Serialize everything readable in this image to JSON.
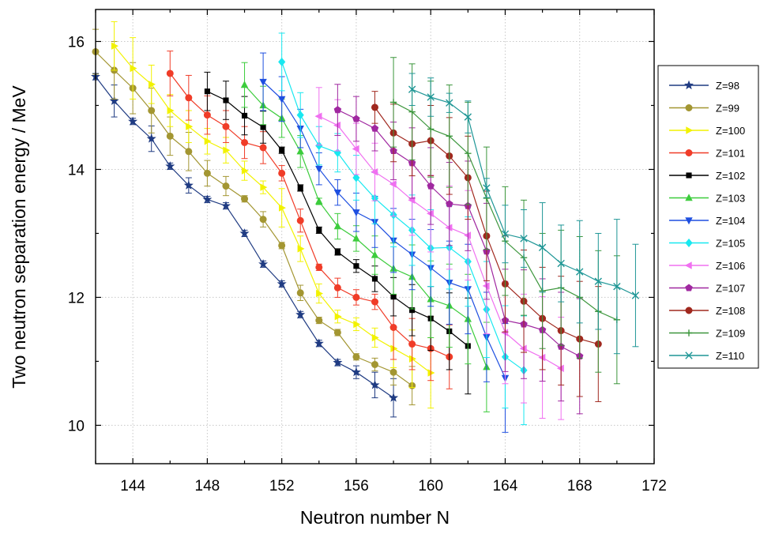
{
  "chart_data": {
    "type": "line",
    "title": "",
    "xlabel": "Neutron number N",
    "ylabel": "Two neutron separation energy / MeV",
    "xlim": [
      142,
      172
    ],
    "ylim": [
      9.4,
      16.5
    ],
    "xticks": [
      144,
      148,
      152,
      156,
      160,
      164,
      168,
      172
    ],
    "xtick_labels": [
      "144",
      "148",
      "152",
      "156",
      "160",
      "164",
      "168",
      "172"
    ],
    "yticks": [
      10,
      12,
      14,
      16
    ],
    "ytick_labels": [
      "10",
      "12",
      "14",
      "16"
    ],
    "grid": true,
    "legend_position": "right",
    "error_bars": true,
    "series": [
      {
        "name": "Z=98",
        "color": "#1f3b82",
        "marker": "star",
        "x": [
          142,
          143,
          144,
          145,
          146,
          147,
          148,
          149,
          150,
          151,
          152,
          153,
          154,
          155,
          156,
          157,
          158
        ],
        "y": [
          15.45,
          15.07,
          14.75,
          14.48,
          14.05,
          13.75,
          13.53,
          13.43,
          13.0,
          12.52,
          12.21,
          11.73,
          11.28,
          10.98,
          10.83,
          10.63,
          10.43
        ],
        "err": [
          0.05,
          0.25,
          0.05,
          0.2,
          0.05,
          0.12,
          0.05,
          0.05,
          0.05,
          0.05,
          0.05,
          0.05,
          0.05,
          0.05,
          0.1,
          0.2,
          0.3
        ]
      },
      {
        "name": "Z=99",
        "color": "#a39632",
        "marker": "circle",
        "x": [
          142,
          143,
          144,
          145,
          146,
          147,
          148,
          149,
          150,
          151,
          152,
          153,
          154,
          155,
          156,
          157,
          158,
          159
        ],
        "y": [
          15.84,
          15.55,
          15.27,
          14.92,
          14.52,
          14.28,
          13.94,
          13.74,
          13.54,
          13.22,
          12.81,
          12.07,
          11.64,
          11.45,
          11.07,
          10.95,
          10.83,
          10.62
        ],
        "err": [
          0.35,
          0.45,
          0.4,
          0.35,
          0.3,
          0.3,
          0.2,
          0.15,
          0.05,
          0.12,
          0.05,
          0.12,
          0.05,
          0.05,
          0.05,
          0.1,
          0.2,
          0.3
        ]
      },
      {
        "name": "Z=100",
        "color": "#f2f200",
        "marker": "triangle-right",
        "x": [
          143,
          144,
          145,
          146,
          147,
          148,
          149,
          150,
          151,
          152,
          153,
          154,
          155,
          156,
          157,
          158,
          159,
          160
        ],
        "y": [
          15.93,
          15.58,
          15.33,
          14.92,
          14.67,
          14.44,
          14.3,
          13.98,
          13.72,
          13.4,
          12.76,
          12.06,
          11.7,
          11.58,
          11.37,
          11.2,
          11.04,
          10.82
        ],
        "err": [
          0.38,
          0.48,
          0.3,
          0.25,
          0.25,
          0.2,
          0.2,
          0.15,
          0.1,
          0.3,
          0.2,
          0.15,
          0.1,
          0.1,
          0.15,
          0.3,
          0.45,
          0.55
        ]
      },
      {
        "name": "Z=101",
        "color": "#f03c28",
        "marker": "circle",
        "x": [
          146,
          147,
          148,
          149,
          150,
          151,
          152,
          153,
          154,
          155,
          156,
          157,
          158,
          159,
          160,
          161
        ],
        "y": [
          15.5,
          15.12,
          14.85,
          14.67,
          14.42,
          14.34,
          13.94,
          13.2,
          12.47,
          12.15,
          12.0,
          11.93,
          11.53,
          11.27,
          11.2,
          11.07
        ],
        "err": [
          0.35,
          0.35,
          0.3,
          0.25,
          0.25,
          0.25,
          0.12,
          0.18,
          0.05,
          0.15,
          0.12,
          0.12,
          0.5,
          0.4,
          0.5,
          0.5
        ]
      },
      {
        "name": "Z=102",
        "color": "#000000",
        "marker": "square",
        "x": [
          148,
          149,
          150,
          151,
          152,
          153,
          154,
          155,
          156,
          157,
          158,
          159,
          160,
          161,
          162
        ],
        "y": [
          15.22,
          15.08,
          14.84,
          14.66,
          14.3,
          13.71,
          13.05,
          12.71,
          12.49,
          12.29,
          12.01,
          11.8,
          11.67,
          11.47,
          11.24
        ],
        "err": [
          0.3,
          0.3,
          0.3,
          0.25,
          0.05,
          0.05,
          0.05,
          0.05,
          0.1,
          0.2,
          0.3,
          0.4,
          0.5,
          0.6,
          0.75
        ]
      },
      {
        "name": "Z=103",
        "color": "#3ccc3c",
        "marker": "triangle-up",
        "x": [
          150,
          151,
          152,
          153,
          154,
          155,
          156,
          157,
          158,
          159,
          160,
          161,
          162,
          163
        ],
        "y": [
          15.32,
          15.0,
          14.8,
          14.28,
          13.5,
          13.11,
          12.92,
          12.66,
          12.45,
          12.32,
          11.97,
          11.87,
          11.66,
          10.91
        ],
        "err": [
          0.35,
          0.3,
          0.3,
          0.25,
          0.05,
          0.2,
          0.2,
          0.3,
          0.4,
          0.5,
          0.6,
          0.65,
          0.7,
          0.7
        ]
      },
      {
        "name": "Z=104",
        "color": "#1e4fe0",
        "marker": "triangle-down",
        "x": [
          151,
          152,
          153,
          154,
          155,
          156,
          157,
          158,
          159,
          160,
          161,
          162,
          163,
          164
        ],
        "y": [
          15.37,
          15.1,
          14.64,
          14.01,
          13.64,
          13.33,
          13.18,
          12.89,
          12.67,
          12.46,
          12.23,
          12.13,
          11.38,
          10.74
        ],
        "err": [
          0.45,
          0.35,
          0.3,
          0.25,
          0.2,
          0.3,
          0.4,
          0.5,
          0.55,
          0.6,
          0.65,
          0.7,
          0.7,
          0.85
        ]
      },
      {
        "name": "Z=105",
        "color": "#18e8f0",
        "marker": "diamond",
        "x": [
          152,
          153,
          154,
          155,
          156,
          157,
          158,
          159,
          160,
          161,
          162,
          163,
          164,
          165
        ],
        "y": [
          15.68,
          14.85,
          14.37,
          14.26,
          13.87,
          13.55,
          13.29,
          13.05,
          12.77,
          12.78,
          12.56,
          11.81,
          11.07,
          10.86
        ],
        "err": [
          0.45,
          0.35,
          0.3,
          0.3,
          0.35,
          0.4,
          0.5,
          0.55,
          0.6,
          0.65,
          0.7,
          0.75,
          0.8,
          0.85
        ]
      },
      {
        "name": "Z=106",
        "color": "#f070f0",
        "marker": "triangle-left",
        "x": [
          154,
          155,
          156,
          157,
          158,
          159,
          160,
          161,
          162,
          163,
          164,
          165,
          166,
          167
        ],
        "y": [
          14.83,
          14.69,
          14.32,
          13.96,
          13.77,
          13.52,
          13.31,
          13.09,
          12.97,
          12.18,
          11.45,
          11.2,
          11.06,
          10.89
        ],
        "err": [
          0.45,
          0.4,
          0.4,
          0.45,
          0.5,
          0.55,
          0.6,
          0.65,
          0.7,
          0.75,
          0.8,
          0.85,
          0.95,
          0.8
        ]
      },
      {
        "name": "Z=107",
        "color": "#a028a0",
        "marker": "pentagon",
        "x": [
          155,
          156,
          157,
          158,
          159,
          160,
          161,
          162,
          163,
          164,
          165,
          166,
          167,
          168
        ],
        "y": [
          14.93,
          14.79,
          14.64,
          14.29,
          14.1,
          13.74,
          13.46,
          13.43,
          12.72,
          11.64,
          11.58,
          11.49,
          11.23,
          11.08
        ],
        "err": [
          0.4,
          0.35,
          0.35,
          0.45,
          0.55,
          0.6,
          0.65,
          0.7,
          0.75,
          0.8,
          0.85,
          0.8,
          0.85,
          0.9
        ]
      },
      {
        "name": "Z=108",
        "color": "#a0281e",
        "marker": "circle",
        "x": [
          157,
          158,
          159,
          160,
          161,
          162,
          163,
          164,
          165,
          166,
          167,
          168,
          169
        ],
        "y": [
          14.97,
          14.57,
          14.4,
          14.45,
          14.21,
          13.87,
          12.96,
          12.21,
          11.94,
          11.67,
          11.48,
          11.35,
          11.27
        ],
        "err": [
          0.25,
          0.45,
          0.5,
          0.55,
          0.6,
          0.65,
          0.7,
          0.75,
          0.8,
          0.8,
          0.85,
          0.9,
          0.9
        ]
      },
      {
        "name": "Z=109",
        "color": "#3c963c",
        "marker": "plus",
        "x": [
          158,
          159,
          160,
          161,
          162,
          163,
          164,
          165,
          166,
          167,
          168,
          169,
          170
        ],
        "y": [
          15.05,
          14.9,
          14.63,
          14.52,
          14.25,
          13.55,
          12.88,
          12.62,
          12.1,
          12.15,
          12.0,
          11.78,
          11.65
        ],
        "err": [
          0.7,
          0.75,
          0.75,
          0.8,
          0.8,
          0.8,
          0.85,
          0.9,
          0.9,
          0.9,
          0.95,
          0.95,
          1.0
        ]
      },
      {
        "name": "Z=110",
        "color": "#1e9696",
        "marker": "x",
        "x": [
          159,
          160,
          161,
          162,
          163,
          164,
          165,
          166,
          167,
          168,
          169,
          170,
          171
        ],
        "y": [
          15.25,
          15.13,
          15.04,
          14.82,
          13.71,
          12.99,
          12.92,
          12.78,
          12.53,
          12.4,
          12.25,
          12.17,
          12.03
        ],
        "err": [
          0.25,
          0.3,
          0.15,
          0.25,
          0.15,
          0.45,
          0.45,
          0.7,
          0.6,
          0.8,
          0.75,
          1.05,
          0.8
        ]
      }
    ]
  }
}
